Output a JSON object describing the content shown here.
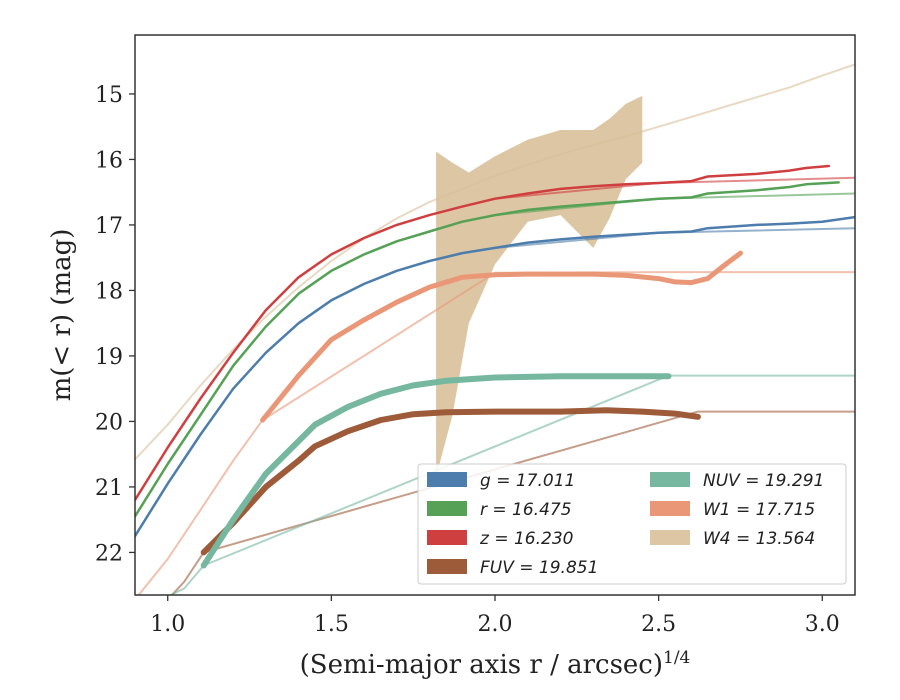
{
  "chart_data": {
    "type": "line",
    "title": "",
    "xlabel": "(Semi-major axis r / arcsec)",
    "xlabel_sup": "1/4",
    "ylabel": "m(< r) (mag)",
    "xlim": [
      0.9,
      3.1
    ],
    "ylim": [
      22.65,
      14.1
    ],
    "y_inverted": true,
    "xticks": [
      "1.0",
      "1.5",
      "2.0",
      "2.5",
      "3.0"
    ],
    "yticks": [
      "15",
      "16",
      "17",
      "18",
      "19",
      "20",
      "21",
      "22"
    ],
    "grid": false,
    "legend_position": "lower-right",
    "series": [
      {
        "name": "g = 17.011",
        "color": "#4c7dac",
        "data": [
          [
            0.9,
            21.75
          ],
          [
            1.0,
            20.95
          ],
          [
            1.1,
            20.2
          ],
          [
            1.2,
            19.5
          ],
          [
            1.3,
            18.95
          ],
          [
            1.4,
            18.5
          ],
          [
            1.5,
            18.15
          ],
          [
            1.6,
            17.9
          ],
          [
            1.7,
            17.7
          ],
          [
            1.8,
            17.55
          ],
          [
            1.9,
            17.43
          ],
          [
            2.0,
            17.35
          ],
          [
            2.1,
            17.27
          ],
          [
            2.2,
            17.22
          ],
          [
            2.3,
            17.18
          ],
          [
            2.4,
            17.15
          ],
          [
            2.5,
            17.12
          ],
          [
            2.6,
            17.1
          ],
          [
            2.65,
            17.05
          ],
          [
            2.8,
            17.0
          ],
          [
            2.9,
            16.98
          ],
          [
            3.0,
            16.95
          ],
          [
            3.1,
            16.88
          ]
        ],
        "model": [
          [
            2.0,
            17.35
          ],
          [
            2.5,
            17.12
          ],
          [
            3.1,
            17.05
          ]
        ]
      },
      {
        "name": "r = 16.475",
        "color": "#55a155",
        "data": [
          [
            0.9,
            21.45
          ],
          [
            1.0,
            20.65
          ],
          [
            1.1,
            19.9
          ],
          [
            1.2,
            19.15
          ],
          [
            1.3,
            18.55
          ],
          [
            1.4,
            18.05
          ],
          [
            1.5,
            17.7
          ],
          [
            1.6,
            17.45
          ],
          [
            1.7,
            17.25
          ],
          [
            1.8,
            17.1
          ],
          [
            1.9,
            16.95
          ],
          [
            2.0,
            16.85
          ],
          [
            2.1,
            16.77
          ],
          [
            2.2,
            16.72
          ],
          [
            2.3,
            16.68
          ],
          [
            2.4,
            16.64
          ],
          [
            2.5,
            16.6
          ],
          [
            2.6,
            16.58
          ],
          [
            2.65,
            16.52
          ],
          [
            2.8,
            16.47
          ],
          [
            2.9,
            16.42
          ],
          [
            2.95,
            16.38
          ],
          [
            3.05,
            16.35
          ]
        ],
        "model": [
          [
            2.0,
            16.85
          ],
          [
            2.5,
            16.6
          ],
          [
            3.1,
            16.52
          ]
        ]
      },
      {
        "name": "z = 16.230",
        "color": "#d03f3f",
        "data": [
          [
            0.9,
            21.2
          ],
          [
            1.0,
            20.4
          ],
          [
            1.1,
            19.65
          ],
          [
            1.2,
            18.95
          ],
          [
            1.3,
            18.3
          ],
          [
            1.4,
            17.8
          ],
          [
            1.5,
            17.45
          ],
          [
            1.6,
            17.2
          ],
          [
            1.7,
            17.0
          ],
          [
            1.8,
            16.85
          ],
          [
            1.9,
            16.72
          ],
          [
            2.0,
            16.6
          ],
          [
            2.1,
            16.52
          ],
          [
            2.2,
            16.45
          ],
          [
            2.3,
            16.41
          ],
          [
            2.4,
            16.38
          ],
          [
            2.5,
            16.36
          ],
          [
            2.6,
            16.33
          ],
          [
            2.65,
            16.26
          ],
          [
            2.8,
            16.22
          ],
          [
            2.9,
            16.17
          ],
          [
            2.95,
            16.13
          ],
          [
            3.02,
            16.1
          ]
        ],
        "model": [
          [
            2.0,
            16.6
          ],
          [
            2.5,
            16.36
          ],
          [
            3.1,
            16.28
          ]
        ]
      },
      {
        "name": "FUV = 19.851",
        "color": "#9e5b3a",
        "data": [
          [
            1.11,
            22.0
          ],
          [
            1.2,
            21.55
          ],
          [
            1.3,
            21.0
          ],
          [
            1.4,
            20.6
          ],
          [
            1.45,
            20.38
          ],
          [
            1.55,
            20.15
          ],
          [
            1.65,
            19.98
          ],
          [
            1.75,
            19.89
          ],
          [
            1.85,
            19.86
          ],
          [
            2.0,
            19.85
          ],
          [
            2.2,
            19.85
          ],
          [
            2.34,
            19.83
          ],
          [
            2.45,
            19.85
          ],
          [
            2.55,
            19.88
          ],
          [
            2.62,
            19.93
          ]
        ],
        "model": [
          [
            1.0,
            22.72
          ],
          [
            1.05,
            22.45
          ],
          [
            1.11,
            22.0
          ],
          [
            2.62,
            19.85
          ],
          [
            3.1,
            19.85
          ]
        ]
      },
      {
        "name": "NUV = 19.291",
        "color": "#76b7a0",
        "data": [
          [
            1.11,
            22.2
          ],
          [
            1.2,
            21.5
          ],
          [
            1.3,
            20.8
          ],
          [
            1.4,
            20.3
          ],
          [
            1.45,
            20.05
          ],
          [
            1.55,
            19.78
          ],
          [
            1.65,
            19.58
          ],
          [
            1.75,
            19.45
          ],
          [
            1.85,
            19.38
          ],
          [
            2.0,
            19.33
          ],
          [
            2.2,
            19.31
          ],
          [
            2.4,
            19.31
          ],
          [
            2.53,
            19.31
          ]
        ],
        "model": [
          [
            0.98,
            22.72
          ],
          [
            1.05,
            22.55
          ],
          [
            1.11,
            22.2
          ],
          [
            2.53,
            19.3
          ],
          [
            3.1,
            19.3
          ]
        ]
      },
      {
        "name": "W1 = 17.715",
        "color": "#ea9778",
        "data": [
          [
            1.29,
            19.98
          ],
          [
            1.4,
            19.3
          ],
          [
            1.5,
            18.75
          ],
          [
            1.6,
            18.45
          ],
          [
            1.7,
            18.18
          ],
          [
            1.8,
            17.95
          ],
          [
            1.9,
            17.8
          ],
          [
            2.0,
            17.76
          ],
          [
            2.1,
            17.75
          ],
          [
            2.2,
            17.75
          ],
          [
            2.3,
            17.75
          ],
          [
            2.4,
            17.77
          ],
          [
            2.5,
            17.82
          ],
          [
            2.55,
            17.87
          ],
          [
            2.6,
            17.88
          ],
          [
            2.65,
            17.82
          ],
          [
            2.7,
            17.62
          ],
          [
            2.75,
            17.43
          ]
        ],
        "model": [
          [
            0.9,
            22.72
          ],
          [
            1.0,
            22.1
          ],
          [
            1.1,
            21.35
          ],
          [
            1.2,
            20.6
          ],
          [
            1.29,
            19.98
          ],
          [
            2.0,
            17.73
          ],
          [
            2.5,
            17.72
          ],
          [
            3.1,
            17.72
          ]
        ]
      },
      {
        "name": "W4 = 13.564",
        "color": "#d9c09a",
        "band_upper": [
          [
            1.82,
            15.88
          ],
          [
            1.87,
            16.05
          ],
          [
            1.92,
            16.2
          ],
          [
            2.0,
            15.95
          ],
          [
            2.1,
            15.7
          ],
          [
            2.2,
            15.55
          ],
          [
            2.3,
            15.55
          ],
          [
            2.35,
            15.38
          ],
          [
            2.4,
            15.15
          ],
          [
            2.45,
            15.03
          ]
        ],
        "band_lower": [
          [
            1.82,
            20.85
          ],
          [
            1.87,
            19.9
          ],
          [
            1.92,
            18.5
          ],
          [
            2.0,
            17.6
          ],
          [
            2.1,
            16.95
          ],
          [
            2.2,
            16.85
          ],
          [
            2.25,
            17.1
          ],
          [
            2.3,
            17.35
          ],
          [
            2.35,
            16.9
          ],
          [
            2.4,
            16.3
          ],
          [
            2.45,
            16.05
          ]
        ],
        "model": [
          [
            0.9,
            20.58
          ],
          [
            1.0,
            20.05
          ],
          [
            1.1,
            19.45
          ],
          [
            1.2,
            18.9
          ],
          [
            1.3,
            18.4
          ],
          [
            1.4,
            17.95
          ],
          [
            1.5,
            17.55
          ],
          [
            1.6,
            17.2
          ],
          [
            1.7,
            16.9
          ],
          [
            1.8,
            16.65
          ],
          [
            1.9,
            16.45
          ],
          [
            2.0,
            16.25
          ],
          [
            2.1,
            16.08
          ],
          [
            2.2,
            15.92
          ],
          [
            2.3,
            15.78
          ],
          [
            2.4,
            15.65
          ],
          [
            2.5,
            15.5
          ],
          [
            2.6,
            15.35
          ],
          [
            2.7,
            15.2
          ],
          [
            2.8,
            15.05
          ],
          [
            2.9,
            14.9
          ],
          [
            3.0,
            14.72
          ],
          [
            3.1,
            14.55
          ]
        ]
      }
    ]
  }
}
